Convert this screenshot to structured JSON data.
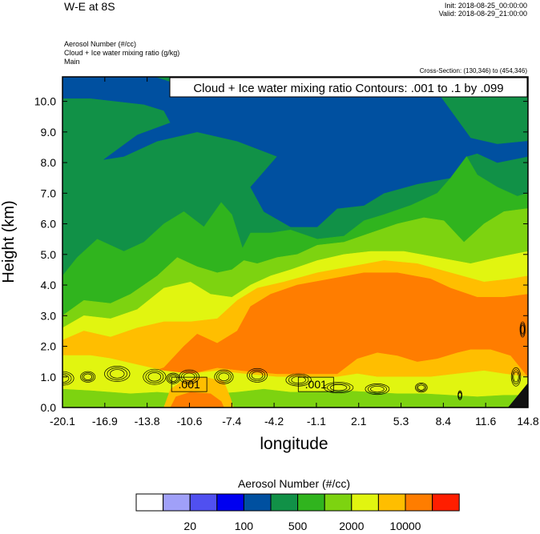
{
  "header": {
    "title": "W-E at 8S",
    "init": "Init: 2018-08-25_00:00:00",
    "valid": "Valid: 2018-08-29_21:00:00",
    "fields": [
      "Aerosol Number   (#/cc)",
      "Cloud + Ice water mixing ratio   (g/kg)",
      "Main"
    ],
    "cross_section": "Cross-Section: (130,346) to (454,346)"
  },
  "chart_data": {
    "type": "heatmap",
    "title": "Cloud + Ice water mixing ratio Contours: .001 to .1 by .099",
    "xlabel": "longitude",
    "ylabel": "Height (km)",
    "xlim": [
      -20.1,
      14.8
    ],
    "ylim": [
      0.0,
      10.8
    ],
    "x_ticks": [
      "-20.1",
      "-16.9",
      "-13.8",
      "-10.6",
      "-7.4",
      "-4.2",
      "-1.1",
      "2.1",
      "5.3",
      "8.4",
      "11.6",
      "14.8"
    ],
    "y_ticks": [
      "0.0",
      "1.0",
      "2.0",
      "3.0",
      "4.0",
      "5.0",
      "6.0",
      "7.0",
      "8.0",
      "9.0",
      "10.0"
    ],
    "contour_labels": [
      {
        "text": ".001",
        "x": -10.6,
        "y": 0.65
      },
      {
        "text": ".001",
        "x": -1.1,
        "y": 0.65
      }
    ],
    "colorbar": {
      "title": "Aerosol Number  (#/cc)",
      "colors": [
        "#ffffff",
        "#a0a0f8",
        "#5050f0",
        "#0000f0",
        "#0050a0",
        "#119147",
        "#30b41e",
        "#7dd310",
        "#e1f510",
        "#ffbe00",
        "#ff7d00",
        "#ff1e00"
      ],
      "tick_labels": [
        "20",
        "100",
        "500",
        "2000",
        "10000"
      ]
    },
    "layers": [
      {
        "name": "green",
        "color": "#119147",
        "top": [
          [
            -20.1,
            10.8
          ],
          [
            14.8,
            10.8
          ]
        ]
      },
      {
        "name": "blue",
        "color": "#0050a0",
        "top": [
          [
            -20.1,
            10.8
          ],
          [
            -13.2,
            10.8
          ],
          [
            -11.8,
            10.6
          ],
          [
            -9.5,
            10.8
          ],
          [
            1.5,
            10.8
          ],
          [
            3.0,
            10.3
          ],
          [
            5.5,
            10.5
          ],
          [
            8.0,
            10.3
          ],
          [
            10.5,
            8.8
          ],
          [
            12.5,
            8.6
          ],
          [
            14.8,
            8.7
          ]
        ],
        "bottom_edge": [
          [
            14.8,
            8.2
          ],
          [
            12.5,
            8.0
          ],
          [
            11.0,
            8.3
          ],
          [
            10.2,
            8.2
          ],
          [
            9.0,
            7.5
          ],
          [
            6.5,
            7.3
          ],
          [
            4.0,
            7.0
          ],
          [
            2.5,
            6.6
          ],
          [
            0.5,
            6.5
          ],
          [
            -1.0,
            5.9
          ],
          [
            -3.0,
            5.9
          ],
          [
            -5.0,
            6.4
          ],
          [
            -6.0,
            7.2
          ],
          [
            -5.0,
            7.7
          ],
          [
            -4.0,
            8.2
          ],
          [
            -7.0,
            8.7
          ],
          [
            -10.0,
            9.0
          ],
          [
            -13.0,
            8.7
          ],
          [
            -15.5,
            8.2
          ],
          [
            -17.0,
            8.1
          ],
          [
            -14.5,
            8.9
          ],
          [
            -12.0,
            9.3
          ],
          [
            -12.5,
            9.7
          ],
          [
            -14.0,
            9.9
          ],
          [
            -16.0,
            10.0
          ],
          [
            -18.0,
            10.1
          ],
          [
            -20.1,
            10.1
          ]
        ]
      },
      {
        "name": "medgreen",
        "color": "#30b41e",
        "top": [
          [
            -20.1,
            4.3
          ],
          [
            -19.0,
            4.9
          ],
          [
            -17.5,
            5.5
          ],
          [
            -15.5,
            5.1
          ],
          [
            -14.0,
            5.4
          ],
          [
            -12.5,
            6.0
          ],
          [
            -11.0,
            6.4
          ],
          [
            -9.5,
            5.9
          ],
          [
            -8.2,
            6.7
          ],
          [
            -7.4,
            6.3
          ],
          [
            -6.6,
            5.2
          ],
          [
            -6.0,
            5.7
          ],
          [
            -4.5,
            5.7
          ],
          [
            -3.0,
            5.8
          ],
          [
            -1.0,
            5.5
          ],
          [
            1.0,
            5.6
          ],
          [
            2.5,
            6.1
          ],
          [
            4.0,
            6.3
          ],
          [
            6.0,
            6.6
          ],
          [
            8.0,
            7.0
          ],
          [
            9.0,
            7.5
          ],
          [
            10.2,
            8.2
          ],
          [
            11.0,
            7.6
          ],
          [
            12.5,
            7.2
          ],
          [
            14.0,
            6.9
          ],
          [
            14.8,
            7.0
          ]
        ]
      },
      {
        "name": "ltgreen",
        "color": "#7dd310",
        "top": [
          [
            -20.1,
            3.0
          ],
          [
            -18.5,
            3.5
          ],
          [
            -16.5,
            3.4
          ],
          [
            -15.0,
            3.7
          ],
          [
            -13.0,
            4.3
          ],
          [
            -11.5,
            4.9
          ],
          [
            -10.0,
            4.6
          ],
          [
            -8.5,
            4.4
          ],
          [
            -7.4,
            4.5
          ],
          [
            -6.5,
            4.8
          ],
          [
            -5.5,
            4.7
          ],
          [
            -4.0,
            4.9
          ],
          [
            -2.5,
            5.0
          ],
          [
            -1.0,
            5.3
          ],
          [
            1.0,
            5.4
          ],
          [
            3.0,
            5.7
          ],
          [
            5.0,
            6.0
          ],
          [
            7.0,
            6.2
          ],
          [
            8.5,
            6.1
          ],
          [
            10.0,
            5.4
          ],
          [
            11.5,
            6.0
          ],
          [
            13.0,
            6.4
          ],
          [
            14.8,
            6.5
          ]
        ]
      },
      {
        "name": "yellow",
        "color": "#e1f510",
        "top": [
          [
            -20.1,
            2.6
          ],
          [
            -18.5,
            3.0
          ],
          [
            -16.5,
            2.9
          ],
          [
            -14.5,
            3.2
          ],
          [
            -12.5,
            3.9
          ],
          [
            -10.5,
            4.1
          ],
          [
            -9.0,
            3.7
          ],
          [
            -7.4,
            3.6
          ],
          [
            -6.0,
            4.0
          ],
          [
            -4.5,
            4.3
          ],
          [
            -3.0,
            4.5
          ],
          [
            -1.0,
            4.8
          ],
          [
            1.0,
            5.0
          ],
          [
            3.0,
            5.1
          ],
          [
            5.5,
            5.1
          ],
          [
            8.0,
            4.9
          ],
          [
            10.5,
            4.7
          ],
          [
            12.5,
            4.9
          ],
          [
            14.8,
            5.1
          ]
        ]
      },
      {
        "name": "orange",
        "color": "#ffbe00",
        "top": [
          [
            -20.1,
            2.2
          ],
          [
            -18.5,
            2.5
          ],
          [
            -16.5,
            2.3
          ],
          [
            -14.5,
            2.6
          ],
          [
            -12.5,
            2.8
          ],
          [
            -10.5,
            2.8
          ],
          [
            -8.5,
            2.9
          ],
          [
            -7.0,
            3.5
          ],
          [
            -5.5,
            3.9
          ],
          [
            -3.5,
            4.1
          ],
          [
            -1.0,
            4.4
          ],
          [
            1.5,
            4.6
          ],
          [
            4.0,
            4.8
          ],
          [
            6.5,
            4.7
          ],
          [
            9.0,
            4.4
          ],
          [
            11.5,
            4.1
          ],
          [
            13.5,
            4.2
          ],
          [
            14.8,
            4.3
          ]
        ]
      },
      {
        "name": "red",
        "color": "#ff7d00",
        "top": [
          [
            -20.1,
            0.8
          ],
          [
            -17.0,
            0.95
          ],
          [
            -14.5,
            1.0
          ],
          [
            -12.5,
            1.3
          ],
          [
            -11.0,
            2.0
          ],
          [
            -10.0,
            2.4
          ],
          [
            -8.5,
            2.1
          ],
          [
            -7.0,
            2.5
          ],
          [
            -6.0,
            3.3
          ],
          [
            -4.5,
            3.7
          ],
          [
            -2.5,
            4.0
          ],
          [
            0.0,
            4.2
          ],
          [
            2.5,
            4.4
          ],
          [
            5.0,
            4.4
          ],
          [
            7.5,
            4.2
          ],
          [
            9.0,
            3.9
          ],
          [
            11.0,
            3.6
          ],
          [
            13.0,
            3.6
          ],
          [
            14.8,
            3.7
          ]
        ],
        "bottom_edge": [
          [
            14.8,
            1.0
          ],
          [
            13.5,
            1.7
          ],
          [
            12.0,
            1.9
          ],
          [
            10.5,
            1.9
          ],
          [
            9.5,
            1.8
          ],
          [
            8.0,
            1.6
          ],
          [
            6.5,
            1.5
          ],
          [
            5.0,
            1.7
          ],
          [
            3.5,
            1.8
          ],
          [
            2.0,
            1.6
          ],
          [
            0.5,
            1.1
          ],
          [
            -1.5,
            1.1
          ],
          [
            -4.0,
            1.1
          ],
          [
            -6.5,
            1.2
          ],
          [
            -8.5,
            1.3
          ],
          [
            -10.5,
            1.1
          ],
          [
            -12.5,
            1.0
          ],
          [
            -14.5,
            0.95
          ],
          [
            -17.0,
            0.9
          ],
          [
            -20.1,
            0.8
          ]
        ]
      }
    ],
    "low_layers": [
      {
        "name": "low-yellow",
        "color": "#e1f510",
        "top": [
          [
            -20.1,
            1.7
          ],
          [
            -18.0,
            1.7
          ],
          [
            -16.5,
            1.6
          ],
          [
            -14.5,
            1.4
          ],
          [
            -12.5,
            1.2
          ],
          [
            -10.5,
            1.1
          ],
          [
            -8.5,
            1.2
          ],
          [
            -6.5,
            1.1
          ],
          [
            -4.0,
            1.0
          ],
          [
            -1.5,
            1.0
          ],
          [
            0.5,
            1.0
          ],
          [
            2.0,
            1.1
          ],
          [
            3.5,
            1.0
          ],
          [
            5.5,
            1.0
          ],
          [
            7.5,
            1.0
          ],
          [
            9.5,
            1.1
          ],
          [
            11.5,
            1.2
          ],
          [
            13.0,
            1.1
          ],
          [
            14.8,
            1.0
          ]
        ]
      },
      {
        "name": "low-green",
        "color": "#7dd310",
        "top": [
          [
            -20.1,
            0.6
          ],
          [
            -18.0,
            0.55
          ],
          [
            -15.0,
            0.45
          ],
          [
            -13.0,
            0.5
          ],
          [
            -11.5,
            0.45
          ],
          [
            -10.0,
            0.5
          ],
          [
            -8.5,
            0.45
          ],
          [
            -7.0,
            0.5
          ],
          [
            -5.0,
            0.6
          ],
          [
            -3.0,
            0.5
          ],
          [
            -1.0,
            0.5
          ],
          [
            1.0,
            0.55
          ],
          [
            3.0,
            0.5
          ],
          [
            5.0,
            0.45
          ],
          [
            7.0,
            0.45
          ],
          [
            9.0,
            0.4
          ],
          [
            11.0,
            0.35
          ],
          [
            13.0,
            0.4
          ],
          [
            14.8,
            0.4
          ]
        ]
      },
      {
        "name": "low-orange",
        "color": "#ffbe00",
        "top": [
          [
            -12.5,
            0.0
          ],
          [
            -12.0,
            0.6
          ],
          [
            -11.0,
            0.9
          ],
          [
            -9.5,
            1.0
          ],
          [
            -8.0,
            0.85
          ],
          [
            -7.5,
            0.3
          ],
          [
            -7.3,
            0.0
          ]
        ]
      },
      {
        "name": "low-red",
        "color": "#ff7d00",
        "top": [
          [
            -12.0,
            0.0
          ],
          [
            -11.6,
            0.35
          ],
          [
            -10.5,
            0.5
          ],
          [
            -9.0,
            0.45
          ],
          [
            -8.2,
            0.2
          ],
          [
            -8.0,
            0.0
          ]
        ]
      }
    ],
    "contour_loops": [
      [
        -20.1,
        0.95,
        1.7,
        0.45
      ],
      [
        -16.0,
        1.1,
        1.9,
        0.5
      ],
      [
        -13.2,
        1.0,
        1.7,
        0.5
      ],
      [
        -10.6,
        1.0,
        1.5,
        0.45
      ],
      [
        -8.0,
        1.0,
        1.4,
        0.45
      ],
      [
        -5.5,
        1.05,
        1.5,
        0.45
      ],
      [
        -2.4,
        0.9,
        1.9,
        0.4
      ],
      [
        0.6,
        0.65,
        2.2,
        0.35
      ],
      [
        3.5,
        0.6,
        1.8,
        0.35
      ],
      [
        6.8,
        0.65,
        0.9,
        0.3
      ],
      [
        9.7,
        0.4,
        0.3,
        0.3
      ],
      [
        13.9,
        1.0,
        0.7,
        0.6
      ],
      [
        14.4,
        2.55,
        0.4,
        0.5
      ],
      [
        -18.2,
        1.0,
        1.1,
        0.35
      ],
      [
        -11.8,
        0.95,
        1.0,
        0.35
      ]
    ]
  }
}
